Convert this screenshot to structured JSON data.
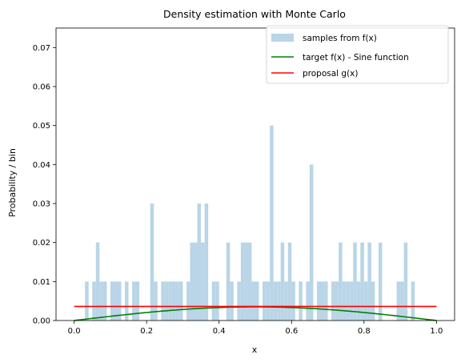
{
  "chart_data": {
    "type": "bar",
    "title": "Density estimation with Monte Carlo",
    "xlabel": "x",
    "ylabel": "Probability / bin",
    "xlim": [
      -0.05,
      1.05
    ],
    "ylim": [
      0,
      0.075
    ],
    "xticks": [
      0.0,
      0.2,
      0.4,
      0.6,
      0.8,
      1.0
    ],
    "xtick_labels": [
      "0.0",
      "0.2",
      "0.4",
      "0.6",
      "0.8",
      "1.0"
    ],
    "yticks": [
      0.0,
      0.01,
      0.02,
      0.03,
      0.04,
      0.05,
      0.06,
      0.07
    ],
    "ytick_labels": [
      "0.00",
      "0.01",
      "0.02",
      "0.03",
      "0.04",
      "0.05",
      "0.06",
      "0.07"
    ],
    "grid": false,
    "legend_position": "top-right",
    "histogram": {
      "name": "samples from f(x)",
      "color": "#b9d5e7",
      "bin_start": 0.0,
      "bin_width": 0.01,
      "values": [
        0,
        0,
        0,
        0.01,
        0,
        0.01,
        0.02,
        0.01,
        0.01,
        0,
        0.01,
        0.01,
        0.01,
        0,
        0.01,
        0,
        0.01,
        0.01,
        0,
        0,
        0,
        0.03,
        0.01,
        0,
        0.01,
        0.01,
        0.01,
        0.01,
        0.01,
        0.01,
        0,
        0.01,
        0.02,
        0.02,
        0.03,
        0.02,
        0.03,
        0,
        0.01,
        0.01,
        0,
        0,
        0.02,
        0.01,
        0,
        0.01,
        0.02,
        0.02,
        0.02,
        0.01,
        0.01,
        0,
        0.01,
        0.01,
        0.05,
        0.01,
        0.01,
        0.02,
        0.01,
        0.02,
        0.01,
        0,
        0.01,
        0,
        0.01,
        0.04,
        0,
        0.01,
        0.01,
        0.01,
        0,
        0.01,
        0.01,
        0.02,
        0.01,
        0.01,
        0.01,
        0.02,
        0.01,
        0.02,
        0.01,
        0.02,
        0.01,
        0,
        0.02,
        0,
        0,
        0,
        0,
        0.01,
        0.01,
        0.02,
        0,
        0.01,
        0,
        0,
        0,
        0,
        0,
        0
      ]
    },
    "series": [
      {
        "name": "target f(x) - Sine function",
        "color": "#008000",
        "type": "line",
        "function": "sine",
        "x": [
          0.0,
          0.05,
          0.1,
          0.15,
          0.2,
          0.25,
          0.3,
          0.35,
          0.4,
          0.45,
          0.5,
          0.55,
          0.6,
          0.65,
          0.7,
          0.75,
          0.8,
          0.85,
          0.9,
          0.95,
          1.0
        ],
        "y": [
          0.0,
          0.00055,
          0.00109,
          0.00159,
          0.00206,
          0.00248,
          0.00283,
          0.00312,
          0.00333,
          0.00346,
          0.0035,
          0.00346,
          0.00333,
          0.00312,
          0.00283,
          0.00248,
          0.00206,
          0.00159,
          0.00109,
          0.00055,
          0.0
        ]
      },
      {
        "name": "proposal g(x)",
        "color": "#ff0000",
        "type": "line",
        "x": [
          0.0,
          1.0
        ],
        "y": [
          0.0036,
          0.0036
        ]
      }
    ]
  }
}
